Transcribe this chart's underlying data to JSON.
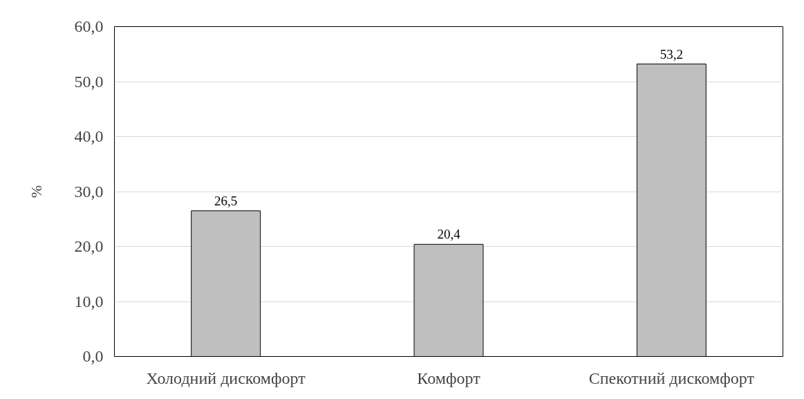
{
  "chart_data": {
    "type": "bar",
    "ylabel": "%",
    "categories": [
      "Холодний дискомфорт",
      "Комфорт",
      "Спекотний дискомфорт"
    ],
    "values": [
      26.5,
      20.4,
      53.2
    ],
    "value_labels": [
      "26,5",
      "20,4",
      "53,2"
    ],
    "color": "#bfbfbf",
    "ylim": [
      0,
      60
    ],
    "yticks": [
      {
        "value": 0,
        "label": "0,0"
      },
      {
        "value": 10,
        "label": "10,0"
      },
      {
        "value": 20,
        "label": "20,0"
      },
      {
        "value": 30,
        "label": "30,0"
      },
      {
        "value": 40,
        "label": "40,0"
      },
      {
        "value": 50,
        "label": "50,0"
      },
      {
        "value": 60,
        "label": "60,0"
      }
    ],
    "grid": "y"
  }
}
